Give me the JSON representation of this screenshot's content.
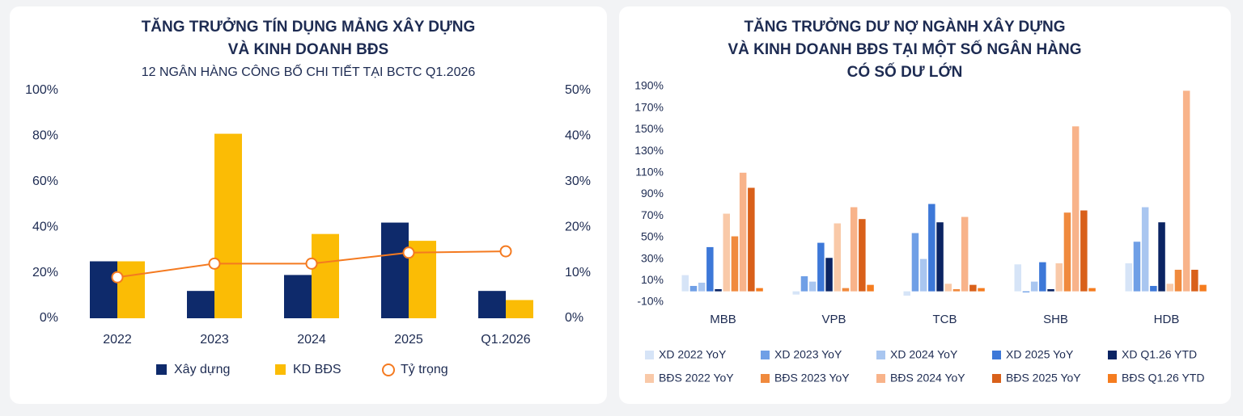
{
  "chart_data": [
    {
      "type": "combo",
      "title": [
        "TĂNG TRƯỞNG TÍN DỤNG MẢNG XÂY DỰNG",
        "VÀ KINH DOANH BĐS"
      ],
      "subtitle": "12 NGÂN HÀNG CÔNG BỐ CHI TIẾT TẠI BCTC Q1.2026",
      "categories": [
        "2022",
        "2023",
        "2024",
        "2025",
        "Q1.2026"
      ],
      "series": [
        {
          "name": "Xây dựng",
          "type": "bar",
          "color": "#0e2a6b",
          "values": [
            25,
            12,
            19,
            42,
            12
          ]
        },
        {
          "name": "KD BĐS",
          "type": "bar",
          "color": "#fbbc05",
          "values": [
            25,
            81,
            37,
            34,
            8
          ]
        },
        {
          "name": "Tỷ trọng",
          "type": "line",
          "axis": "y2",
          "color": "#f47a20",
          "values": [
            9,
            12,
            12,
            14.4,
            14.7
          ]
        }
      ],
      "ylim": [
        0,
        100
      ],
      "yticks": [
        {
          "value": 0,
          "label": "0%"
        },
        {
          "value": 20,
          "label": "20%"
        },
        {
          "value": 40,
          "label": "40%"
        },
        {
          "value": 60,
          "label": "60%"
        },
        {
          "value": 80,
          "label": "80%"
        },
        {
          "value": 100,
          "label": "100%"
        }
      ],
      "y2lim": [
        0,
        50
      ],
      "y2ticks": [
        {
          "value": 0,
          "label": "0%"
        },
        {
          "value": 10,
          "label": "10%"
        },
        {
          "value": 20,
          "label": "20%"
        },
        {
          "value": 30,
          "label": "30%"
        },
        {
          "value": 40,
          "label": "40%"
        },
        {
          "value": 50,
          "label": "50%"
        }
      ],
      "legend": "bottom"
    },
    {
      "type": "bar",
      "title": [
        "TĂNG TRƯỞNG DƯ NỢ NGÀNH XÂY DỰNG",
        "VÀ KINH DOANH BĐS TẠI MỘT SỐ NGÂN HÀNG",
        "CÓ SỐ DƯ LỚN"
      ],
      "categories": [
        "MBB",
        "VPB",
        "TCB",
        "SHB",
        "HDB"
      ],
      "series": [
        {
          "name": "XD 2022 YoY",
          "color": "#d6e4f7",
          "values": [
            15,
            -3,
            -4,
            25,
            26
          ]
        },
        {
          "name": "XD 2023 YoY",
          "color": "#6f9fe6",
          "values": [
            5,
            14,
            54,
            -1,
            46
          ]
        },
        {
          "name": "XD 2024 YoY",
          "color": "#a9c6f0",
          "values": [
            8,
            9,
            30,
            9,
            78
          ]
        },
        {
          "name": "XD 2025 YoY",
          "color": "#3d78d8",
          "values": [
            41,
            45,
            81,
            27,
            5
          ]
        },
        {
          "name": "XD Q1.26 YTD",
          "color": "#0b2463",
          "values": [
            2,
            31,
            64,
            2,
            64
          ]
        },
        {
          "name": "BĐS 2022 YoY",
          "color": "#f9c9a8",
          "values": [
            72,
            63,
            7,
            26,
            7
          ]
        },
        {
          "name": "BĐS 2023 YoY",
          "color": "#f08a3e",
          "values": [
            51,
            3,
            2,
            73,
            20
          ]
        },
        {
          "name": "BĐS 2024 YoY",
          "color": "#f8b38a",
          "values": [
            110,
            78,
            69,
            153,
            186
          ]
        },
        {
          "name": "BĐS 2025 YoY",
          "color": "#d9601a",
          "values": [
            96,
            67,
            6,
            75,
            20
          ]
        },
        {
          "name": "BĐS Q1.26 YTD",
          "color": "#f57c1f",
          "values": [
            3,
            6,
            3,
            3,
            6
          ]
        }
      ],
      "ylim": [
        -10,
        190
      ],
      "yticks": [
        {
          "value": -10,
          "label": "-10%"
        },
        {
          "value": 10,
          "label": "10%"
        },
        {
          "value": 30,
          "label": "30%"
        },
        {
          "value": 50,
          "label": "50%"
        },
        {
          "value": 70,
          "label": "70%"
        },
        {
          "value": 90,
          "label": "90%"
        },
        {
          "value": 110,
          "label": "110%"
        },
        {
          "value": 130,
          "label": "130%"
        },
        {
          "value": 150,
          "label": "150%"
        },
        {
          "value": 170,
          "label": "170%"
        },
        {
          "value": 190,
          "label": "190%"
        }
      ],
      "legend": "bottom"
    }
  ]
}
